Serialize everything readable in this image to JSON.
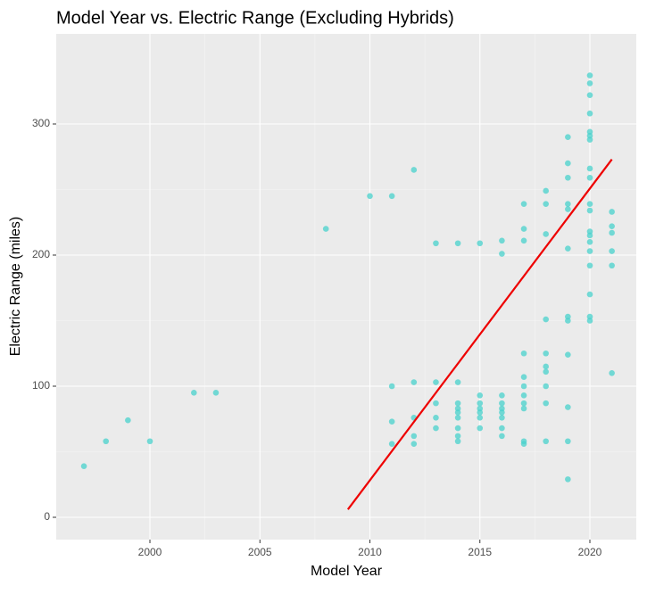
{
  "chart_data": {
    "type": "scatter",
    "title": "Model Year vs. Electric Range (Excluding Hybrids)",
    "x_label": "Model Year",
    "y_label": "Electric Range (miles)",
    "x": [
      1997,
      1998,
      1999,
      2000,
      2002,
      2003,
      2008,
      2010,
      2011,
      2011,
      2011,
      2011,
      2012,
      2012,
      2012,
      2012,
      2012,
      2013,
      2013,
      2013,
      2013,
      2013,
      2014,
      2014,
      2014,
      2014,
      2014,
      2014,
      2014,
      2014,
      2014,
      2015,
      2015,
      2015,
      2015,
      2015,
      2015,
      2015,
      2016,
      2016,
      2016,
      2016,
      2016,
      2016,
      2016,
      2016,
      2016,
      2017,
      2017,
      2017,
      2017,
      2017,
      2017,
      2017,
      2017,
      2017,
      2017,
      2017,
      2018,
      2018,
      2018,
      2018,
      2018,
      2018,
      2018,
      2018,
      2018,
      2018,
      2019,
      2019,
      2019,
      2019,
      2019,
      2019,
      2019,
      2019,
      2019,
      2019,
      2019,
      2019,
      2020,
      2020,
      2020,
      2020,
      2020,
      2020,
      2020,
      2020,
      2020,
      2020,
      2020,
      2020,
      2020,
      2020,
      2020,
      2020,
      2020,
      2020,
      2020,
      2021,
      2021,
      2021,
      2021,
      2021,
      2021
    ],
    "y": [
      39,
      58,
      74,
      58,
      95,
      95,
      220,
      245,
      245,
      100,
      73,
      56,
      265,
      103,
      76,
      62,
      56,
      209,
      103,
      87,
      76,
      68,
      209,
      103,
      87,
      83,
      80,
      76,
      68,
      62,
      58,
      209,
      93,
      87,
      83,
      80,
      76,
      68,
      211,
      201,
      93,
      87,
      83,
      80,
      76,
      68,
      62,
      239,
      220,
      211,
      125,
      107,
      100,
      93,
      87,
      83,
      58,
      56,
      249,
      239,
      216,
      151,
      125,
      115,
      111,
      100,
      87,
      58,
      290,
      270,
      259,
      239,
      235,
      205,
      153,
      150,
      124,
      84,
      58,
      29,
      337,
      331,
      322,
      308,
      294,
      291,
      288,
      266,
      259,
      239,
      234,
      218,
      215,
      210,
      203,
      192,
      170,
      153,
      150,
      233,
      222,
      217,
      203,
      192,
      110
    ],
    "color": "#48d1cc",
    "trend": {
      "x": [
        2009,
        2021
      ],
      "y": [
        6,
        273
      ],
      "color": "#ee0000"
    },
    "xlim": [
      1995.74,
      2022.11
    ],
    "ylim": [
      -17,
      368.7
    ],
    "xticks": [
      2000,
      2005,
      2010,
      2015,
      2020
    ],
    "yticks": [
      0,
      100,
      200,
      300
    ],
    "grid": true
  }
}
